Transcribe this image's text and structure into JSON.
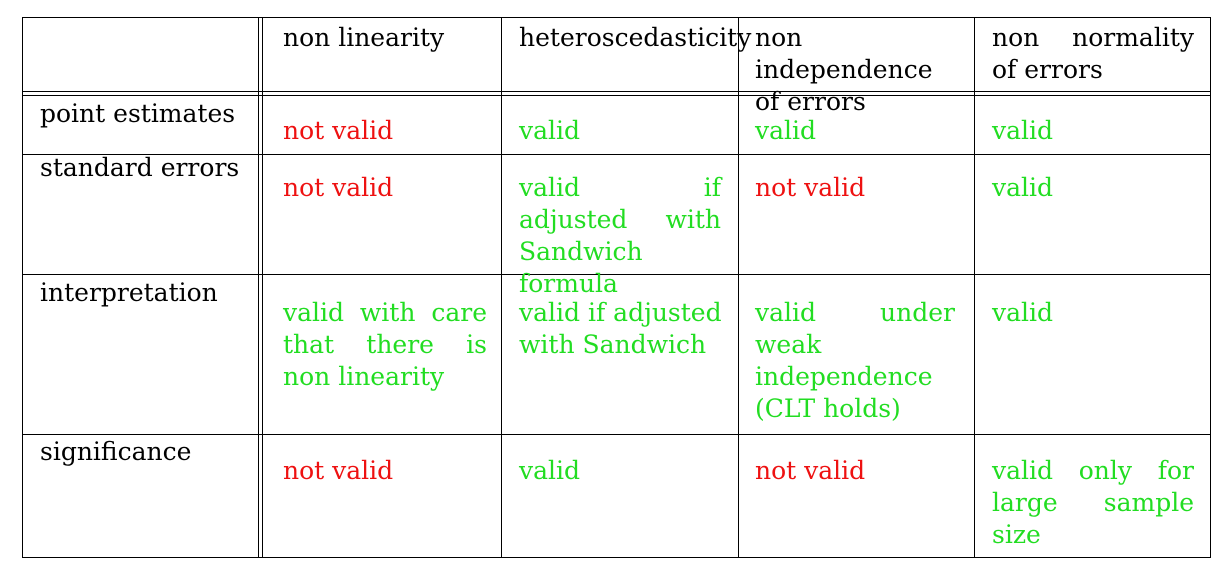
{
  "table": {
    "columns": [
      "",
      "non linearity",
      "heteroscedasticity",
      "non independence of errors",
      "non normality of errors"
    ],
    "header_cells": {
      "c1": "non linearity",
      "c2": "heteroscedasticity",
      "c3_line1": "non independence of errors",
      "c4_line1": "non normality of errors"
    },
    "row_labels": [
      "point estimates",
      "standard errors",
      "interpretation",
      "significance"
    ],
    "rows": [
      {
        "label": "point estimates",
        "cells": [
          {
            "text": "not valid",
            "status": "invalid"
          },
          {
            "text": "valid",
            "status": "valid"
          },
          {
            "text": "valid",
            "status": "valid"
          },
          {
            "text": "valid",
            "status": "valid"
          }
        ]
      },
      {
        "label": "standard errors",
        "cells": [
          {
            "text": "not valid",
            "status": "invalid"
          },
          {
            "text": "valid if adjusted with Sandwich formula",
            "status": "valid"
          },
          {
            "text": "not valid",
            "status": "invalid"
          },
          {
            "text": "valid",
            "status": "valid"
          }
        ]
      },
      {
        "label": "interpretation",
        "cells": [
          {
            "text": "valid with care that there is non linearity",
            "status": "valid"
          },
          {
            "text": "valid if adjusted with Sandwich",
            "status": "valid"
          },
          {
            "text": "valid under weak independence (CLT holds)",
            "status": "valid"
          },
          {
            "text": "valid",
            "status": "valid"
          }
        ]
      },
      {
        "label": "significance",
        "cells": [
          {
            "text": "not valid",
            "status": "invalid"
          },
          {
            "text": "valid",
            "status": "valid"
          },
          {
            "text": "not valid",
            "status": "invalid"
          },
          {
            "text": "valid only for large sample size",
            "status": "valid"
          }
        ]
      }
    ]
  },
  "colors": {
    "valid": "#22dd22",
    "invalid": "#ee1111",
    "text": "#000000",
    "rule": "#000000"
  }
}
